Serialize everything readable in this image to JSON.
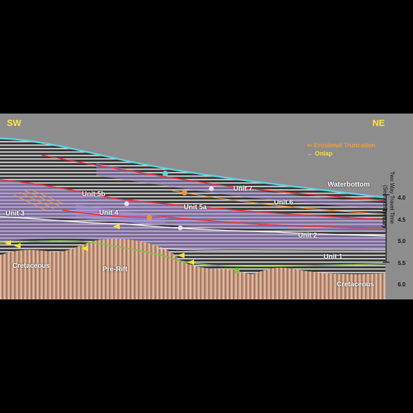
{
  "directions": {
    "left": "SW",
    "right": "NE"
  },
  "legend": {
    "erosional": "Erosional Truncation",
    "onlap": "Onlap",
    "erosional_color": "#f29a3c",
    "onlap_color": "#f5e23a"
  },
  "labels": {
    "waterbottom": "Waterbottom",
    "unit_7": "Unit 7",
    "unit_6": "Unit 6",
    "unit_5b": "Unit 5b",
    "unit_5a": "Unit 5a",
    "unit_4": "Unit 4",
    "unit_3": "Unit 3",
    "unit_2": "Unit 2",
    "unit_1": "Unit 1",
    "cretaceous_left": "Cretaceous",
    "cretaceous_right": "Cretaceous",
    "pre_rift": "Pre-Rift",
    "tertiary": "Tertiary"
  },
  "axis": {
    "title_line1": "Two Way Travel Time",
    "title_line2": "(Seconds)",
    "ticks": [
      "4.0",
      "4.5",
      "5.0",
      "5.5",
      "6.0"
    ]
  },
  "horizon_markers": [
    "7",
    "6",
    "5",
    "4",
    "3",
    "2",
    "1"
  ],
  "colors": {
    "water": "#8d8d8d",
    "waterbottom": "#5fd3e3",
    "unit_fill": "#a98fd6",
    "basement": "#c4957a",
    "horizon_red": "#e0343a",
    "horizon_orange": "#f0963a",
    "horizon_green": "#7ec24a",
    "horizon_white": "#f3f3f3"
  }
}
